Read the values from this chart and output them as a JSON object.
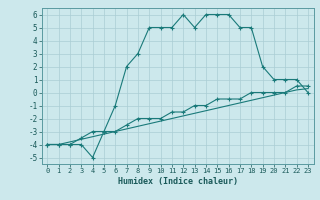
{
  "title": "",
  "xlabel": "Humidex (Indice chaleur)",
  "bg_color": "#cce8ec",
  "grid_color": "#aacdd4",
  "line_color": "#1a7a7a",
  "xlim": [
    -0.5,
    23.5
  ],
  "ylim": [
    -5.5,
    6.5
  ],
  "xticks": [
    0,
    1,
    2,
    3,
    4,
    5,
    6,
    7,
    8,
    9,
    10,
    11,
    12,
    13,
    14,
    15,
    16,
    17,
    18,
    19,
    20,
    21,
    22,
    23
  ],
  "yticks": [
    -5,
    -4,
    -3,
    -2,
    -1,
    0,
    1,
    2,
    3,
    4,
    5,
    6
  ],
  "line1_x": [
    0,
    1,
    2,
    3,
    4,
    5,
    6,
    7,
    8,
    9,
    10,
    11,
    12,
    13,
    14,
    15,
    16,
    17,
    18,
    19,
    20,
    21,
    22,
    23
  ],
  "line1_y": [
    -4,
    -4,
    -4,
    -4,
    -5,
    -3,
    -1,
    2,
    3,
    5,
    5,
    5,
    6,
    5,
    6,
    6,
    6,
    5,
    5,
    2,
    1,
    1,
    1,
    0
  ],
  "line2_x": [
    0,
    1,
    2,
    3,
    4,
    5,
    6,
    7,
    8,
    9,
    10,
    11,
    12,
    13,
    14,
    15,
    16,
    17,
    18,
    19,
    20,
    21,
    22,
    23
  ],
  "line2_y": [
    -4,
    -4,
    -4,
    -3.5,
    -3,
    -3,
    -3,
    -2.5,
    -2,
    -2,
    -2,
    -1.5,
    -1.5,
    -1,
    -1,
    -0.5,
    -0.5,
    -0.5,
    0,
    0,
    0,
    0,
    0.5,
    0.5
  ],
  "line3_x": [
    0,
    1,
    2,
    3,
    4,
    5,
    6,
    7,
    8,
    9,
    10,
    11,
    12,
    13,
    14,
    15,
    16,
    17,
    18,
    19,
    20,
    21,
    22,
    23
  ],
  "line3_y": [
    -4,
    -4,
    -3.8,
    -3.6,
    -3.4,
    -3.2,
    -3,
    -2.8,
    -2.6,
    -2.4,
    -2.2,
    -2,
    -1.8,
    -1.6,
    -1.4,
    -1.2,
    -1,
    -0.8,
    -0.6,
    -0.4,
    -0.2,
    0,
    0.2,
    0.3
  ]
}
